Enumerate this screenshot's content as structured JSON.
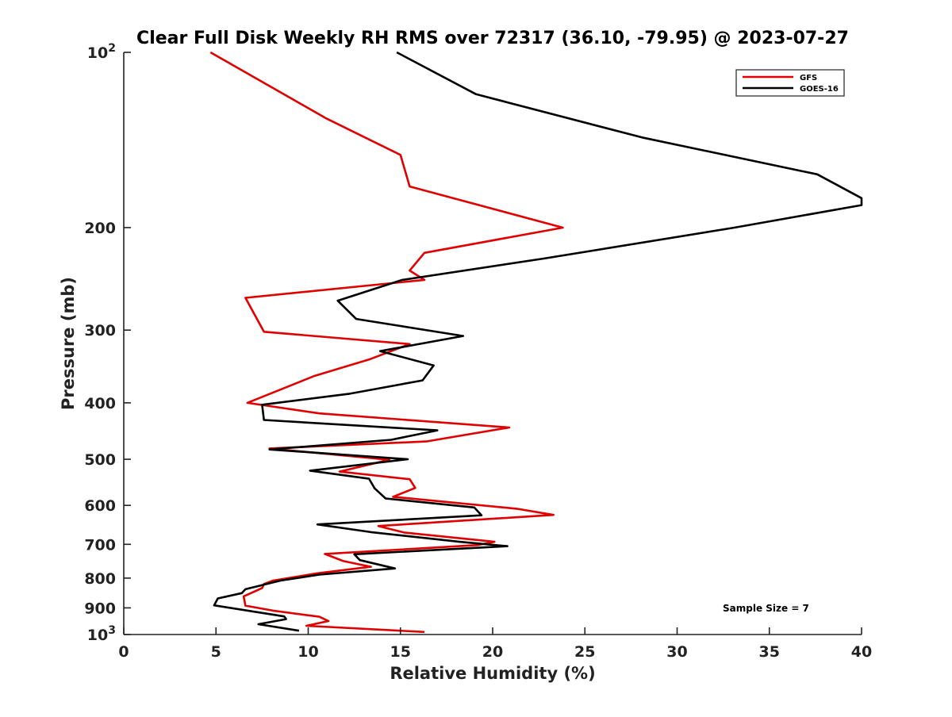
{
  "chart_data": {
    "type": "line",
    "title": "Clear Full Disk Weekly RH RMS over 72317 (36.10, -79.95) @ 2023-07-27",
    "xlabel": "Relative Humidity (%)",
    "ylabel": "Pressure (mb)",
    "xlim": [
      0,
      40
    ],
    "ylim": [
      100,
      1000
    ],
    "y_scale": "log",
    "y_reversed": true,
    "grid": false,
    "legend_position": "top-right",
    "x_ticks": [
      0,
      5,
      10,
      15,
      20,
      25,
      30,
      35,
      40
    ],
    "y_ticks": [
      {
        "value": 100,
        "base": "10",
        "exp": "2"
      },
      {
        "value": 200,
        "label": "200"
      },
      {
        "value": 300,
        "label": "300"
      },
      {
        "value": 400,
        "label": "400"
      },
      {
        "value": 500,
        "label": "500"
      },
      {
        "value": 600,
        "label": "600"
      },
      {
        "value": 700,
        "label": "700"
      },
      {
        "value": 800,
        "label": "800"
      },
      {
        "value": 900,
        "label": "900"
      },
      {
        "value": 1000,
        "base": "10",
        "exp": "3"
      }
    ],
    "annotation": "Sample Size = 7",
    "series": [
      {
        "name": "GFS",
        "color": "#e00000",
        "points": [
          [
            4.7,
            100
          ],
          [
            11.0,
            130
          ],
          [
            15.0,
            150
          ],
          [
            15.5,
            170
          ],
          [
            23.8,
            200
          ],
          [
            16.3,
            221
          ],
          [
            15.5,
            237
          ],
          [
            16.3,
            246
          ],
          [
            6.6,
            264
          ],
          [
            7.6,
            302
          ],
          [
            15.5,
            317
          ],
          [
            13.3,
            337
          ],
          [
            10.3,
            360
          ],
          [
            6.7,
            400
          ],
          [
            10.6,
            417
          ],
          [
            20.9,
            441
          ],
          [
            16.4,
            466
          ],
          [
            7.9,
            479
          ],
          [
            14.4,
            501
          ],
          [
            11.7,
            525
          ],
          [
            15.5,
            541
          ],
          [
            15.8,
            560
          ],
          [
            14.6,
            580
          ],
          [
            21.3,
            608
          ],
          [
            23.3,
            623
          ],
          [
            13.8,
            651
          ],
          [
            15.2,
            668
          ],
          [
            20.1,
            693
          ],
          [
            19.2,
            702
          ],
          [
            10.9,
            727
          ],
          [
            11.9,
            748
          ],
          [
            13.4,
            765
          ],
          [
            10.5,
            785
          ],
          [
            8.1,
            808
          ],
          [
            7.6,
            819
          ],
          [
            7.5,
            832
          ],
          [
            6.5,
            860
          ],
          [
            6.6,
            892
          ],
          [
            8.1,
            910
          ],
          [
            10.6,
            932
          ],
          [
            11.1,
            948
          ],
          [
            9.9,
            966
          ],
          [
            16.3,
            990
          ]
        ]
      },
      {
        "name": "GOES-16",
        "color": "#000000",
        "points": [
          [
            14.8,
            100
          ],
          [
            19.1,
            118
          ],
          [
            28.1,
            140
          ],
          [
            37.6,
            162
          ],
          [
            40.0,
            178
          ],
          [
            40.0,
            183
          ],
          [
            33.1,
            200
          ],
          [
            22.8,
            226
          ],
          [
            15.1,
            246
          ],
          [
            11.6,
            267
          ],
          [
            12.6,
            287
          ],
          [
            18.4,
            307
          ],
          [
            13.9,
            326
          ],
          [
            16.8,
            345
          ],
          [
            16.2,
            366
          ],
          [
            12.2,
            386
          ],
          [
            7.5,
            403
          ],
          [
            7.6,
            428
          ],
          [
            17.0,
            446
          ],
          [
            14.5,
            463
          ],
          [
            7.9,
            481
          ],
          [
            15.4,
            500
          ],
          [
            10.1,
            523
          ],
          [
            13.3,
            540
          ],
          [
            13.6,
            561
          ],
          [
            14.2,
            584
          ],
          [
            19.0,
            605
          ],
          [
            19.4,
            624
          ],
          [
            10.5,
            647
          ],
          [
            13.4,
            667
          ],
          [
            18.2,
            693
          ],
          [
            20.8,
            705
          ],
          [
            12.5,
            728
          ],
          [
            12.8,
            745
          ],
          [
            14.7,
            770
          ],
          [
            10.6,
            789
          ],
          [
            8.5,
            808
          ],
          [
            6.6,
            836
          ],
          [
            6.4,
            849
          ],
          [
            5.1,
            867
          ],
          [
            4.9,
            891
          ],
          [
            8.7,
            931
          ],
          [
            8.8,
            941
          ],
          [
            7.3,
            960
          ],
          [
            9.5,
            985
          ]
        ]
      }
    ]
  }
}
